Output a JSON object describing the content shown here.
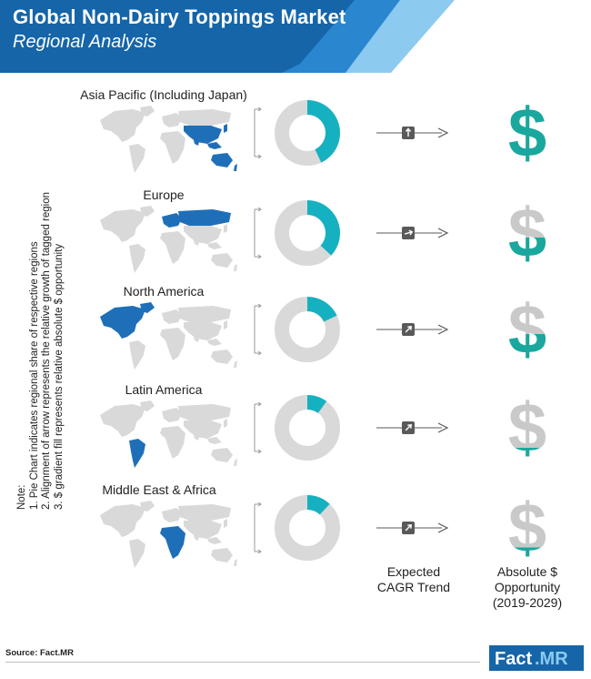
{
  "header": {
    "title": "Global Non-Dairy Toppings Market",
    "subtitle": "Regional Analysis"
  },
  "note": {
    "heading": "Note:",
    "lines": [
      "1. Pie Chart indicates regional share of respective regions",
      "2. Alignment of arrow represents the relative growth of tagged region",
      "3. $ gradient fill represents relative absolute $ opportunity"
    ]
  },
  "columns": {
    "cagr": [
      "Expected",
      "CAGR Trend"
    ],
    "opportunity": [
      "Absolute $",
      "Opportunity",
      "(2019-2029)"
    ]
  },
  "colors": {
    "header_dark": "#1565a8",
    "header_mid": "#2a86cf",
    "header_light": "#8ccbef",
    "map_base": "#d9d9d9",
    "map_highlight": "#1f6fb8",
    "donut_base": "#d9d9d9",
    "donut_share": "#16b1c1",
    "dollar_base": "#c9c9c9",
    "dollar_fill": "#1aa79e",
    "arrow": "#595959"
  },
  "chart_data": {
    "type": "pie",
    "note": "",
    "regions": [
      {
        "name": "Asia Pacific (Including Japan)",
        "share": 0.43,
        "trend_angle_deg": 90,
        "opportunity_fill": 1.0
      },
      {
        "name": "Europe",
        "share": 0.37,
        "trend_angle_deg": 15,
        "opportunity_fill": 0.45
      },
      {
        "name": "North America",
        "share": 0.18,
        "trend_angle_deg": 45,
        "opportunity_fill": 0.45
      },
      {
        "name": "Latin America",
        "share": 0.1,
        "trend_angle_deg": 45,
        "opportunity_fill": 0.25
      },
      {
        "name": "Middle East & Africa",
        "share": 0.12,
        "trend_angle_deg": 45,
        "opportunity_fill": 0.25
      }
    ]
  },
  "source": "Source: Fact.MR",
  "logo": {
    "part1": "Fact",
    "part2": ".MR"
  }
}
